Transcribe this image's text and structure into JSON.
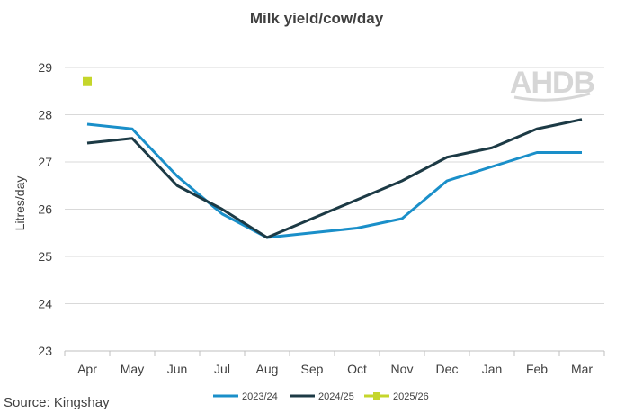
{
  "chart_data": {
    "type": "line",
    "title": "Milk yield/cow/day",
    "xlabel": "",
    "ylabel": "Litres/day",
    "categories": [
      "Apr",
      "May",
      "Jun",
      "Jul",
      "Aug",
      "Sep",
      "Oct",
      "Nov",
      "Dec",
      "Jan",
      "Feb",
      "Mar"
    ],
    "y_ticks": [
      23,
      24,
      25,
      26,
      27,
      28,
      29
    ],
    "ylim": [
      23,
      29
    ],
    "grid": "horizontal",
    "legend_position": "bottom",
    "series": [
      {
        "name": "2023/24",
        "color": "#1a8fc9",
        "values": [
          27.8,
          27.7,
          26.7,
          25.9,
          25.4,
          25.5,
          25.6,
          25.8,
          26.6,
          26.9,
          27.2,
          27.2
        ]
      },
      {
        "name": "2024/25",
        "color": "#1c3a45",
        "values": [
          27.4,
          27.5,
          26.5,
          26.0,
          25.4,
          25.8,
          26.2,
          26.6,
          27.1,
          27.3,
          27.7,
          27.9
        ]
      },
      {
        "name": "2025/26",
        "color": "#c5d62b",
        "values": [
          28.7,
          null,
          null,
          null,
          null,
          null,
          null,
          null,
          null,
          null,
          null,
          null
        ]
      }
    ]
  },
  "source": "Source: Kingshay",
  "logo": "AHDB"
}
